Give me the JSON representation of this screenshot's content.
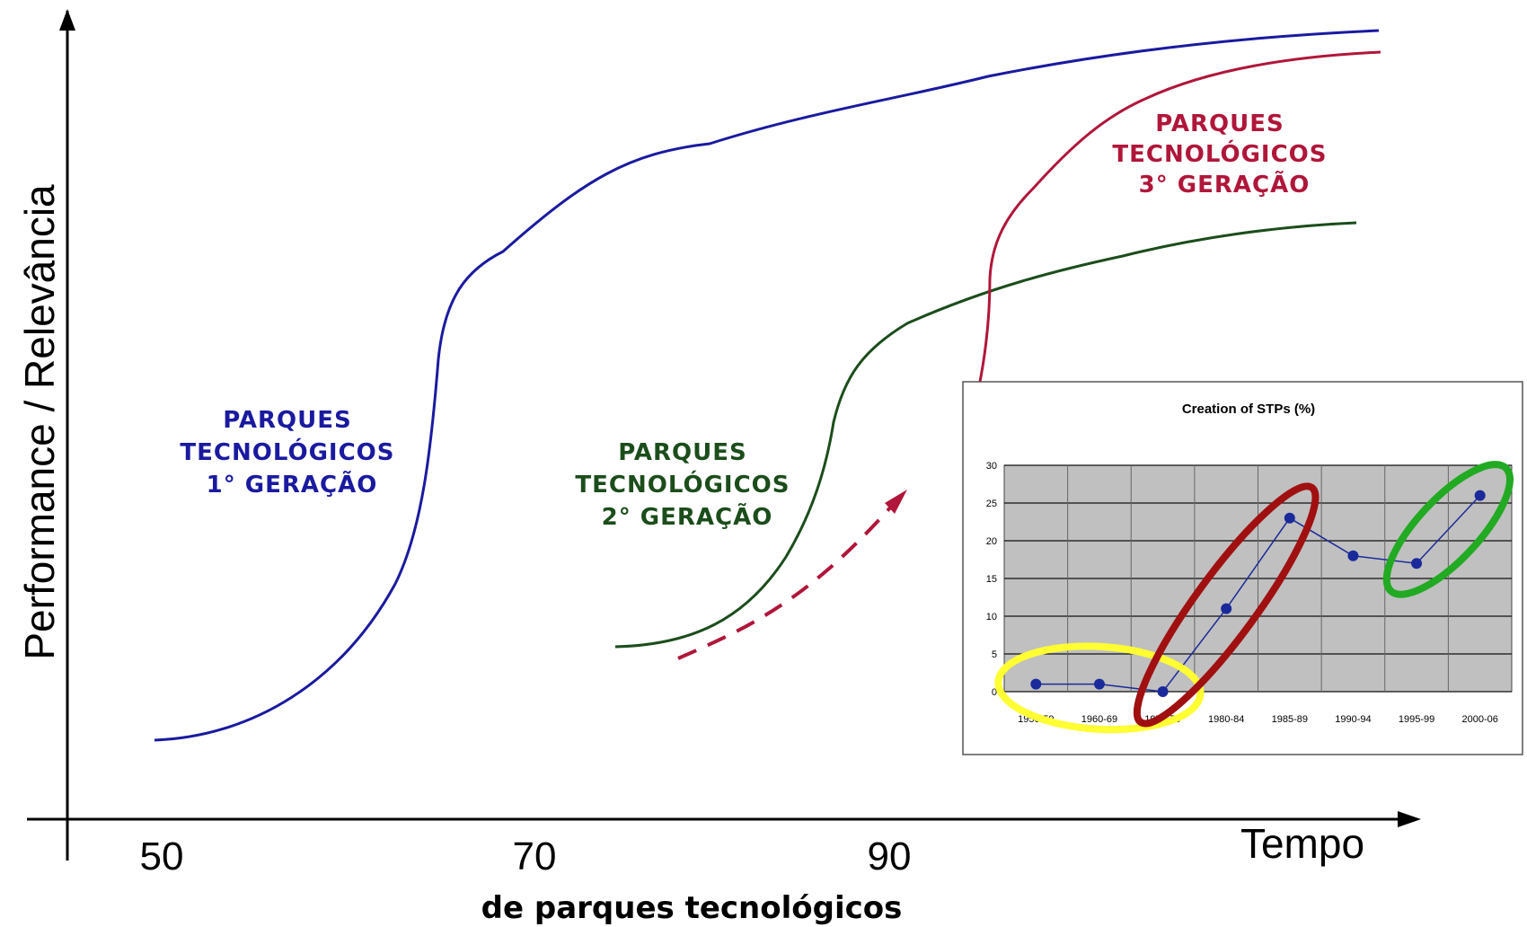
{
  "chart_data": [
    {
      "type": "line",
      "ylabel": "Performance / Relevância",
      "xlabel": "Tempo",
      "subtitle": "de parques tecnológicos",
      "x_ticks": [
        "50",
        "70",
        "90"
      ],
      "series": [
        {
          "name": "PARQUES TECNOLÓGICOS 1° GERAÇÃO",
          "label_lines": [
            "PARQUES",
            "TECNOLÓGICOS",
            "1° GERAÇÃO"
          ],
          "color": "#1a1aa0"
        },
        {
          "name": "PARQUES TECNOLÓGICOS 2° GERAÇÃO",
          "label_lines": [
            "PARQUES",
            "TECNOLÓGICOS",
            "2° GERAÇÃO"
          ],
          "color": "#1b4d1b"
        },
        {
          "name": "PARQUES TECNOLÓGICOS 3° GERAÇÃO",
          "label_lines": [
            "PARQUES",
            "TECNOLÓGICOS",
            "3° GERAÇÃO"
          ],
          "color": "#b0163a"
        }
      ],
      "arrow_color": "#b0163a"
    },
    {
      "type": "line",
      "title": "Creation of STPs (%)",
      "categories": [
        "1950-59",
        "1960-69",
        "1970-79",
        "1980-84",
        "1985-89",
        "1990-94",
        "1995-99",
        "2000-06"
      ],
      "values": [
        1,
        1,
        0,
        11,
        23,
        18,
        17,
        26
      ],
      "ylim": [
        0,
        30
      ],
      "y_ticks": [
        0,
        5,
        10,
        15,
        20,
        25,
        30
      ],
      "grid": true,
      "line_color": "#1a2a9a",
      "plot_background": "#c0c0c0",
      "highlights": [
        {
          "color": "#ffff33",
          "categories": [
            "1950-59",
            "1970-79"
          ]
        },
        {
          "color": "#a01010",
          "categories": [
            "1970-79",
            "1985-89"
          ]
        },
        {
          "color": "#22aa22",
          "categories": [
            "1995-99",
            "2000-06"
          ]
        }
      ]
    }
  ]
}
